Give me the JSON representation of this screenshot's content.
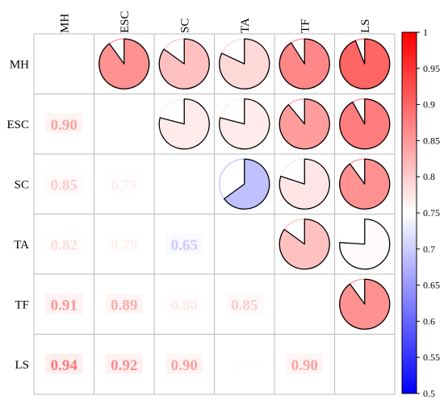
{
  "chart_data": {
    "type": "heatmap",
    "title": "",
    "variables": [
      "MH",
      "ESC",
      "SC",
      "TA",
      "TF",
      "LS"
    ],
    "matrix": [
      [
        null,
        0.9,
        0.85,
        0.82,
        0.91,
        0.94
      ],
      [
        0.9,
        null,
        0.79,
        0.79,
        0.89,
        0.92
      ],
      [
        0.85,
        0.79,
        null,
        0.65,
        0.8,
        0.9
      ],
      [
        0.82,
        0.79,
        0.65,
        null,
        0.85,
        0.76
      ],
      [
        0.91,
        0.89,
        0.8,
        0.85,
        null,
        0.9
      ],
      [
        0.94,
        0.92,
        0.9,
        0.76,
        0.9,
        null
      ]
    ],
    "value_labels": [
      [
        "",
        "",
        "",
        "",
        "",
        ""
      ],
      [
        "0.90",
        "",
        "",
        "",
        "",
        ""
      ],
      [
        "0.85",
        "0.79",
        "",
        "",
        "",
        ""
      ],
      [
        "0.82",
        "0.79",
        "0.65",
        "",
        "",
        ""
      ],
      [
        "0.91",
        "0.89",
        "0.80",
        "0.85",
        "",
        ""
      ],
      [
        "0.94",
        "0.92",
        "0.90",
        "0.76",
        "0.90",
        ""
      ]
    ],
    "lower_triangle": "numbers",
    "upper_triangle": "pie",
    "colorbar": {
      "min": 0.5,
      "max": 1,
      "ticks": [
        "0.5",
        "0.55",
        "0.6",
        "0.65",
        "0.7",
        "0.75",
        "0.8",
        "0.85",
        "0.9",
        "0.95",
        "1"
      ],
      "colormap": "bwr",
      "colors": {
        "low": "#0000ff",
        "mid": "#ffffff",
        "high": "#ff0000"
      }
    },
    "grid": true
  }
}
